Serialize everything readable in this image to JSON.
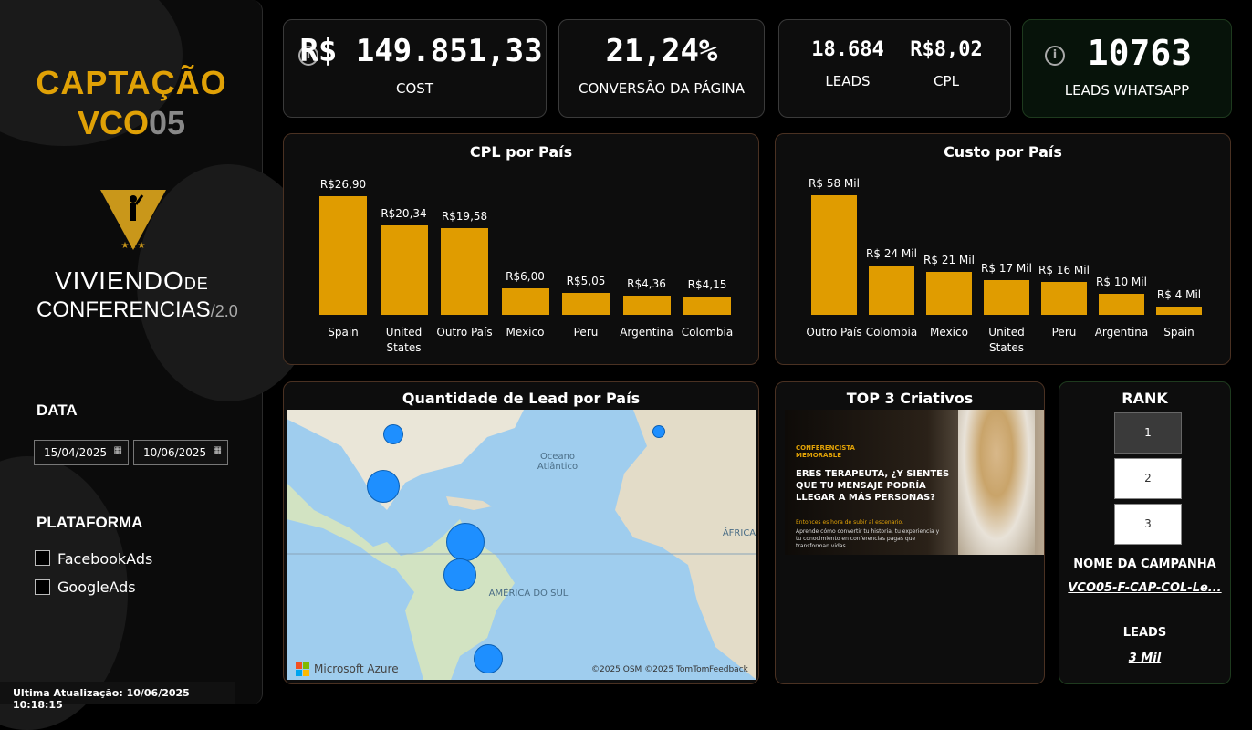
{
  "sidebar": {
    "title": "CAPTAÇÃO",
    "subtitle_a": "VCO",
    "subtitle_b": "05",
    "brand_line1": "VIVIENDO",
    "brand_line1_suffix": "DE",
    "brand_line2": "CONFERENCIAS",
    "brand_version": "/2.0",
    "date_label": "DATA",
    "date_start": "15/04/2025",
    "date_end": "10/06/2025",
    "platform_label": "PLATAFORMA",
    "platforms": [
      "FacebookAds",
      "GoogleAds"
    ],
    "last_update": "Ultima Atualização: 10/06/2025 10:18:15"
  },
  "kpis": {
    "cost_value": "R$ 149.851,33",
    "cost_label": "COST",
    "conv_value": "21,24%",
    "conv_label": "CONVERSÃO DA PÁGINA",
    "leads_value": "18.684",
    "leads_label": "LEADS",
    "cpl_value": "R$8,02",
    "cpl_label": "CPL",
    "whatsapp_value": "10763",
    "whatsapp_label": "LEADS WHATSAPP"
  },
  "chart_data": [
    {
      "type": "bar",
      "title": "CPL por País",
      "categories": [
        "Spain",
        "United States",
        "Outro País",
        "Mexico",
        "Peru",
        "Argentina",
        "Colombia"
      ],
      "values": [
        26.9,
        20.34,
        19.58,
        6.0,
        5.05,
        4.36,
        4.15
      ],
      "labels": [
        "R$26,90",
        "R$20,34",
        "R$19,58",
        "R$6,00",
        "R$5,05",
        "R$4,36",
        "R$4,15"
      ],
      "color": "#e09c00"
    },
    {
      "type": "bar",
      "title": "Custo por País",
      "categories": [
        "Outro País",
        "Colombia",
        "Mexico",
        "United States",
        "Peru",
        "Argentina",
        "Spain"
      ],
      "values": [
        58,
        24,
        21,
        17,
        16,
        10,
        4
      ],
      "labels": [
        "R$ 58 Mil",
        "R$ 24 Mil",
        "R$ 21 Mil",
        "R$ 17 Mil",
        "R$ 16 Mil",
        "R$ 10 Mil",
        "R$ 4 Mil"
      ],
      "color": "#e09c00"
    }
  ],
  "map": {
    "title": "Quantidade de Lead por País",
    "ocean_label": "Oceano Atlântico",
    "continent_label": "AMÉRICA DO SUL",
    "africa_label": "ÁFRICA",
    "provider": "Microsoft Azure",
    "copyright": "©2025 OSM  ©2025 TomTom",
    "feedback": "Feedback"
  },
  "creatives": {
    "title": "TOP 3 Criativos",
    "ad_badge": "CONFERENCISTA MEMORABLE",
    "ad_headline": "ERES TERAPEUTA, ¿Y SIENTES QUE TU MENSAJE PODRÍA LLEGAR A MÁS PERSONAS?",
    "ad_sub": "Entonces es hora de subir al escenario.",
    "ad_body": "Aprende cómo convertir tu historia, tu experiencia y tu conocimiento en conferencias pagas que transforman vidas."
  },
  "rank": {
    "title": "RANK",
    "options": [
      "1",
      "2",
      "3"
    ],
    "campaign_label": "NOME DA CAMPANHA",
    "campaign_value": "VCO05-F-CAP-COL-Le...",
    "leads_label": "LEADS",
    "leads_value": "3 Mil"
  }
}
